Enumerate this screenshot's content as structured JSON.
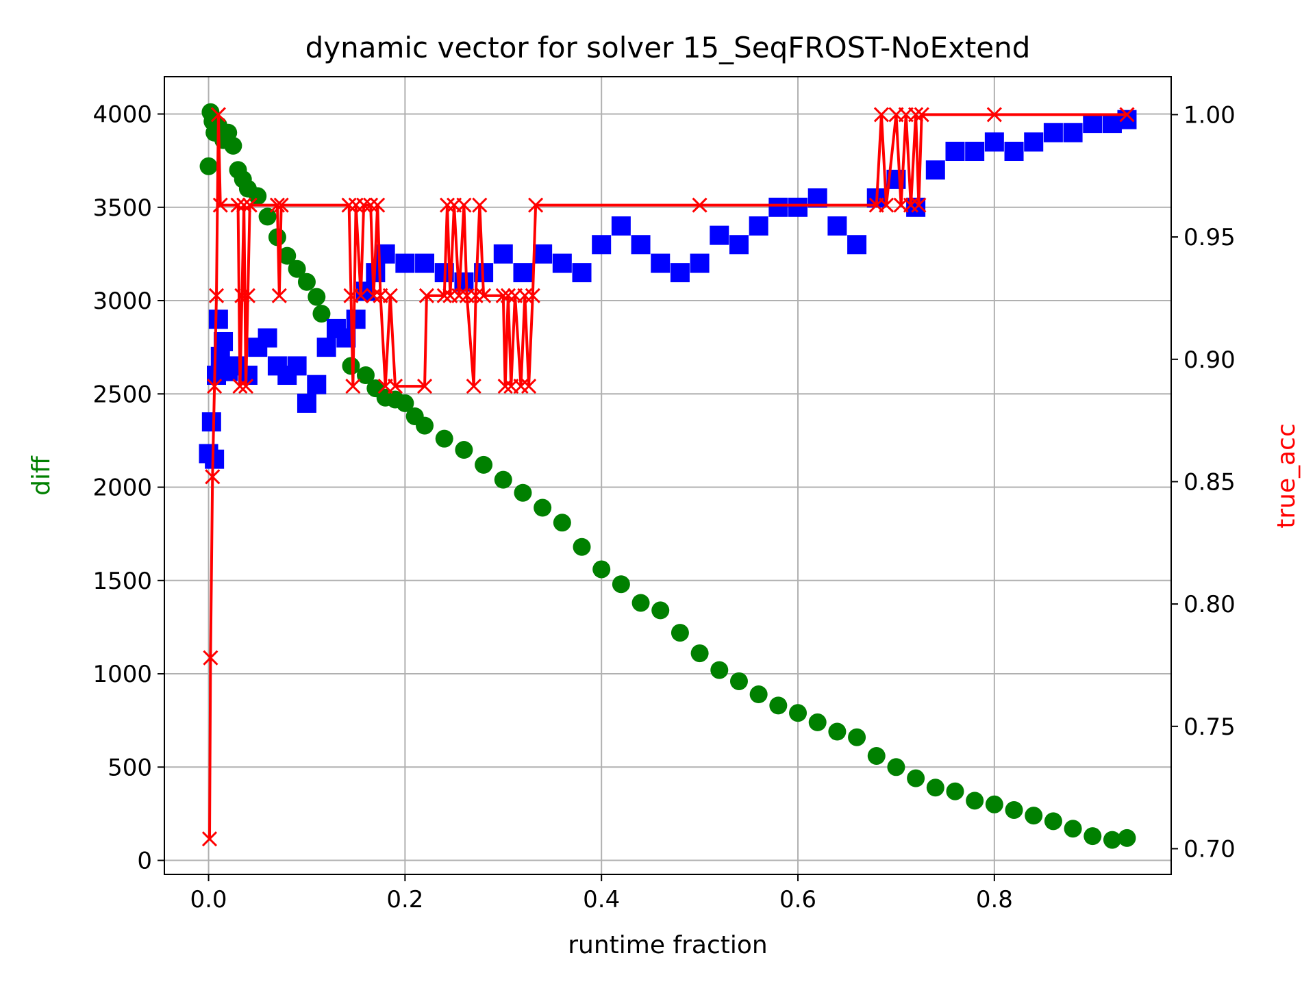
{
  "chart_data": {
    "type": "line",
    "title": "dynamic vector for solver 15_SeqFROST-NoExtend",
    "xlabel": "runtime fraction",
    "ylabel": "diff",
    "ylabel_right": "true_acc",
    "xlim": [
      -0.045,
      0.98
    ],
    "ylim": [
      -75,
      4200
    ],
    "ylim_right": [
      0.6895,
      1.0155
    ],
    "x_ticks": [
      "0.0",
      "0.2",
      "0.4",
      "0.6",
      "0.8"
    ],
    "x_tick_values": [
      0.0,
      0.2,
      0.4,
      0.6,
      0.8
    ],
    "y_ticks": [
      "0",
      "500",
      "1000",
      "1500",
      "2000",
      "2500",
      "3000",
      "3500",
      "4000"
    ],
    "y_tick_values": [
      0,
      500,
      1000,
      1500,
      2000,
      2500,
      3000,
      3500,
      4000
    ],
    "y_right_ticks": [
      "0.70",
      "0.75",
      "0.80",
      "0.85",
      "0.90",
      "0.95",
      "1.00"
    ],
    "y_right_tick_values": [
      0.7,
      0.75,
      0.8,
      0.85,
      0.9,
      0.95,
      1.0
    ],
    "grid": true,
    "colors": {
      "diff": "#008000",
      "blue_series": "#0000ff",
      "true_acc": "#ff0000",
      "ylabel": "#008000",
      "ylabel_right": "#ff0000"
    },
    "series": [
      {
        "axis": "left",
        "marker": "circle",
        "color": "#008000",
        "points": [
          [
            0.0,
            3720
          ],
          [
            0.002,
            4010
          ],
          [
            0.004,
            3960
          ],
          [
            0.006,
            3900
          ],
          [
            0.01,
            3940
          ],
          [
            0.015,
            3860
          ],
          [
            0.02,
            3900
          ],
          [
            0.025,
            3830
          ],
          [
            0.03,
            3700
          ],
          [
            0.035,
            3650
          ],
          [
            0.04,
            3600
          ],
          [
            0.05,
            3560
          ],
          [
            0.06,
            3450
          ],
          [
            0.07,
            3340
          ],
          [
            0.08,
            3240
          ],
          [
            0.09,
            3170
          ],
          [
            0.1,
            3100
          ],
          [
            0.11,
            3020
          ],
          [
            0.115,
            2930
          ],
          [
            0.145,
            2650
          ],
          [
            0.16,
            2600
          ],
          [
            0.17,
            2530
          ],
          [
            0.18,
            2480
          ],
          [
            0.19,
            2470
          ],
          [
            0.2,
            2450
          ],
          [
            0.21,
            2380
          ],
          [
            0.22,
            2330
          ],
          [
            0.24,
            2260
          ],
          [
            0.26,
            2200
          ],
          [
            0.28,
            2120
          ],
          [
            0.3,
            2040
          ],
          [
            0.32,
            1970
          ],
          [
            0.34,
            1890
          ],
          [
            0.36,
            1810
          ],
          [
            0.38,
            1680
          ],
          [
            0.4,
            1560
          ],
          [
            0.42,
            1480
          ],
          [
            0.44,
            1380
          ],
          [
            0.46,
            1340
          ],
          [
            0.48,
            1220
          ],
          [
            0.5,
            1110
          ],
          [
            0.52,
            1020
          ],
          [
            0.54,
            960
          ],
          [
            0.56,
            890
          ],
          [
            0.58,
            830
          ],
          [
            0.6,
            790
          ],
          [
            0.62,
            740
          ],
          [
            0.64,
            690
          ],
          [
            0.66,
            660
          ],
          [
            0.68,
            560
          ],
          [
            0.7,
            500
          ],
          [
            0.72,
            440
          ],
          [
            0.74,
            390
          ],
          [
            0.76,
            370
          ],
          [
            0.78,
            320
          ],
          [
            0.8,
            300
          ],
          [
            0.82,
            270
          ],
          [
            0.84,
            240
          ],
          [
            0.86,
            210
          ],
          [
            0.88,
            170
          ],
          [
            0.9,
            130
          ],
          [
            0.92,
            110
          ],
          [
            0.935,
            120
          ]
        ]
      },
      {
        "axis": "left",
        "marker": "square",
        "color": "#0000ff",
        "points": [
          [
            0.0,
            2180
          ],
          [
            0.003,
            2350
          ],
          [
            0.006,
            2150
          ],
          [
            0.008,
            2600
          ],
          [
            0.01,
            2900
          ],
          [
            0.012,
            2700
          ],
          [
            0.015,
            2780
          ],
          [
            0.02,
            2620
          ],
          [
            0.03,
            2650
          ],
          [
            0.04,
            2600
          ],
          [
            0.05,
            2750
          ],
          [
            0.06,
            2800
          ],
          [
            0.07,
            2650
          ],
          [
            0.08,
            2600
          ],
          [
            0.09,
            2650
          ],
          [
            0.1,
            2450
          ],
          [
            0.11,
            2550
          ],
          [
            0.12,
            2750
          ],
          [
            0.13,
            2850
          ],
          [
            0.14,
            2800
          ],
          [
            0.15,
            2900
          ],
          [
            0.16,
            3050
          ],
          [
            0.17,
            3150
          ],
          [
            0.18,
            3250
          ],
          [
            0.2,
            3200
          ],
          [
            0.22,
            3200
          ],
          [
            0.24,
            3150
          ],
          [
            0.26,
            3100
          ],
          [
            0.28,
            3150
          ],
          [
            0.3,
            3250
          ],
          [
            0.32,
            3150
          ],
          [
            0.34,
            3250
          ],
          [
            0.36,
            3200
          ],
          [
            0.38,
            3150
          ],
          [
            0.4,
            3300
          ],
          [
            0.42,
            3400
          ],
          [
            0.44,
            3300
          ],
          [
            0.46,
            3200
          ],
          [
            0.48,
            3150
          ],
          [
            0.5,
            3200
          ],
          [
            0.52,
            3350
          ],
          [
            0.54,
            3300
          ],
          [
            0.56,
            3400
          ],
          [
            0.58,
            3500
          ],
          [
            0.6,
            3500
          ],
          [
            0.62,
            3550
          ],
          [
            0.64,
            3400
          ],
          [
            0.66,
            3300
          ],
          [
            0.68,
            3550
          ],
          [
            0.7,
            3650
          ],
          [
            0.72,
            3500
          ],
          [
            0.74,
            3700
          ],
          [
            0.76,
            3800
          ],
          [
            0.78,
            3800
          ],
          [
            0.8,
            3850
          ],
          [
            0.82,
            3800
          ],
          [
            0.84,
            3850
          ],
          [
            0.86,
            3900
          ],
          [
            0.88,
            3900
          ],
          [
            0.9,
            3950
          ],
          [
            0.92,
            3950
          ],
          [
            0.935,
            3970
          ]
        ]
      },
      {
        "name": "true_acc",
        "axis": "right",
        "marker": "x",
        "color": "#ff0000",
        "points": [
          [
            0.001,
            0.704
          ],
          [
            0.002,
            0.778
          ],
          [
            0.004,
            0.852
          ],
          [
            0.006,
            0.889
          ],
          [
            0.008,
            0.926
          ],
          [
            0.01,
            1.0
          ],
          [
            0.012,
            0.963
          ],
          [
            0.03,
            0.963
          ],
          [
            0.032,
            0.889
          ],
          [
            0.034,
            0.926
          ],
          [
            0.036,
            0.963
          ],
          [
            0.038,
            0.889
          ],
          [
            0.04,
            0.926
          ],
          [
            0.042,
            0.963
          ],
          [
            0.07,
            0.963
          ],
          [
            0.072,
            0.926
          ],
          [
            0.074,
            0.963
          ],
          [
            0.143,
            0.963
          ],
          [
            0.145,
            0.926
          ],
          [
            0.147,
            0.889
          ],
          [
            0.15,
            0.963
          ],
          [
            0.155,
            0.926
          ],
          [
            0.158,
            0.963
          ],
          [
            0.165,
            0.963
          ],
          [
            0.168,
            0.926
          ],
          [
            0.172,
            0.963
          ],
          [
            0.175,
            0.926
          ],
          [
            0.18,
            0.889
          ],
          [
            0.185,
            0.926
          ],
          [
            0.19,
            0.889
          ],
          [
            0.22,
            0.889
          ],
          [
            0.222,
            0.926
          ],
          [
            0.24,
            0.926
          ],
          [
            0.243,
            0.963
          ],
          [
            0.246,
            0.926
          ],
          [
            0.25,
            0.963
          ],
          [
            0.255,
            0.926
          ],
          [
            0.26,
            0.963
          ],
          [
            0.263,
            0.926
          ],
          [
            0.27,
            0.889
          ],
          [
            0.272,
            0.926
          ],
          [
            0.276,
            0.963
          ],
          [
            0.28,
            0.926
          ],
          [
            0.3,
            0.926
          ],
          [
            0.302,
            0.889
          ],
          [
            0.305,
            0.926
          ],
          [
            0.308,
            0.889
          ],
          [
            0.312,
            0.926
          ],
          [
            0.318,
            0.889
          ],
          [
            0.322,
            0.926
          ],
          [
            0.326,
            0.889
          ],
          [
            0.33,
            0.926
          ],
          [
            0.333,
            0.963
          ],
          [
            0.5,
            0.963
          ],
          [
            0.68,
            0.963
          ],
          [
            0.685,
            1.0
          ],
          [
            0.69,
            0.963
          ],
          [
            0.7,
            1.0
          ],
          [
            0.705,
            0.963
          ],
          [
            0.71,
            1.0
          ],
          [
            0.715,
            0.963
          ],
          [
            0.72,
            1.0
          ],
          [
            0.723,
            0.963
          ],
          [
            0.726,
            1.0
          ],
          [
            0.8,
            1.0
          ],
          [
            0.935,
            1.0
          ]
        ]
      }
    ]
  }
}
